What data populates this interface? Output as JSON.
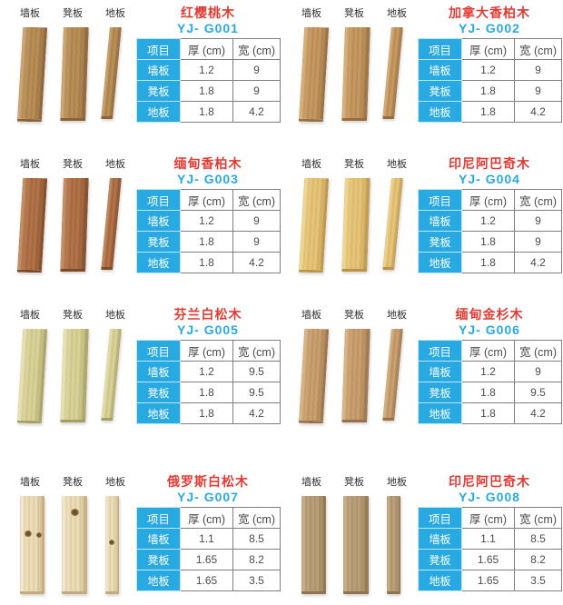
{
  "shared": {
    "board_labels": [
      "墙板",
      "凳板",
      "地板"
    ],
    "table_headers": [
      "项目",
      "厚 (cm)",
      "宽 (cm)"
    ],
    "colors": {
      "accent_blue": "#29a9e1",
      "accent_red": "#e23b33",
      "table_border": "#7f7f7f",
      "cell_text": "#4b4b4e",
      "label_text": "#2f2f2f"
    }
  },
  "products": [
    {
      "name": "红樱桃木",
      "model": "YJ- G001",
      "wood": {
        "base": "#b3884f",
        "light": "#cfa876",
        "dark": "#8a6236",
        "knots": false,
        "straight": false
      },
      "rows": [
        {
          "thickness": "1.2",
          "width": "9"
        },
        {
          "thickness": "1.8",
          "width": "9"
        },
        {
          "thickness": "1.8",
          "width": "4.2"
        }
      ]
    },
    {
      "name": "加拿大香柏木",
      "model": "YJ- G002",
      "wood": {
        "base": "#c2925a",
        "light": "#d9b37c",
        "dark": "#966e3e",
        "knots": false,
        "straight": false
      },
      "rows": [
        {
          "thickness": "1.2",
          "width": "9"
        },
        {
          "thickness": "1.8",
          "width": "9"
        },
        {
          "thickness": "1.8",
          "width": "4.2"
        }
      ]
    },
    {
      "name": "缅甸香柏木",
      "model": "YJ- G003",
      "wood": {
        "base": "#ac6b40",
        "light": "#c79267",
        "dark": "#7d4a28",
        "knots": false,
        "straight": false
      },
      "rows": [
        {
          "thickness": "1.2",
          "width": "9"
        },
        {
          "thickness": "1.8",
          "width": "9"
        },
        {
          "thickness": "1.8",
          "width": "4.2"
        }
      ]
    },
    {
      "name": "印尼阿巴奇木",
      "model": "YJ- G004",
      "wood": {
        "base": "#e4c172",
        "light": "#f2da96",
        "dark": "#bb9448",
        "knots": false,
        "straight": false
      },
      "rows": [
        {
          "thickness": "1.2",
          "width": "9"
        },
        {
          "thickness": "1.8",
          "width": "9"
        },
        {
          "thickness": "1.8",
          "width": "4.2"
        }
      ]
    },
    {
      "name": "芬兰白松木",
      "model": "YJ- G005",
      "wood": {
        "base": "#d5cf93",
        "light": "#eae5b6",
        "dark": "#a5a061",
        "knots": false,
        "straight": false
      },
      "rows": [
        {
          "thickness": "1.2",
          "width": "9.5"
        },
        {
          "thickness": "1.8",
          "width": "9.5"
        },
        {
          "thickness": "1.8",
          "width": "4.2"
        }
      ]
    },
    {
      "name": "缅甸金杉木",
      "model": "YJ- G006",
      "wood": {
        "base": "#c59a68",
        "light": "#dab887",
        "dark": "#97714a",
        "knots": false,
        "straight": false
      },
      "rows": [
        {
          "thickness": "1.2",
          "width": "9"
        },
        {
          "thickness": "1.8",
          "width": "9.5"
        },
        {
          "thickness": "1.8",
          "width": "4.2"
        }
      ]
    },
    {
      "name": "俄罗斯白松木",
      "model": "YJ- G007",
      "wood": {
        "base": "#e9dab2",
        "light": "#f4ead0",
        "dark": "#c6ab7a",
        "knots": true,
        "straight": true
      },
      "rows": [
        {
          "thickness": "1.1",
          "width": "8.5"
        },
        {
          "thickness": "1.65",
          "width": "8.2"
        },
        {
          "thickness": "1.65",
          "width": "3.5"
        }
      ]
    },
    {
      "name": "印尼阿巴奇木",
      "model": "YJ- G008",
      "wood": {
        "base": "#b49a72",
        "light": "#c6ae88",
        "dark": "#8d744f",
        "knots": false,
        "straight": true
      },
      "rows": [
        {
          "thickness": "1.1",
          "width": "8.5"
        },
        {
          "thickness": "1.65",
          "width": "8.2"
        },
        {
          "thickness": "1.65",
          "width": "3.5"
        }
      ]
    }
  ]
}
